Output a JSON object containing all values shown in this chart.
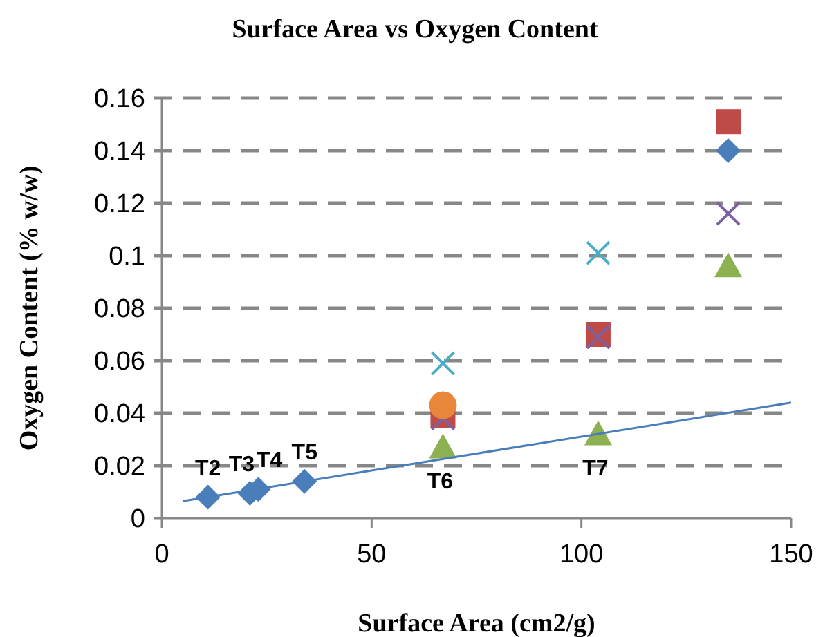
{
  "chart_data": {
    "type": "scatter",
    "title": "Surface Area vs Oxygen Content",
    "xlabel": "Surface Area (cm2/g)",
    "ylabel": "Oxygen Content (% w/w)",
    "xlim": [
      0,
      150
    ],
    "xticks": [
      0,
      50,
      100,
      150
    ],
    "ylim": [
      0,
      0.16
    ],
    "yticks": [
      0,
      0.02,
      0.04,
      0.06,
      0.08,
      0.1,
      0.12,
      0.14,
      0.16
    ],
    "grid": "y",
    "series": [
      {
        "color": "#4a7ebb",
        "marker": "diamond",
        "x": [
          11,
          21,
          23,
          34,
          135
        ],
        "values": [
          0.008,
          0.0095,
          0.011,
          0.014,
          0.14
        ]
      },
      {
        "color": "#be4b48",
        "marker": "square",
        "x": [
          67,
          104,
          135
        ],
        "values": [
          0.039,
          0.07,
          0.151
        ]
      },
      {
        "color": "#7d60a0",
        "marker": "cross",
        "x": [
          67,
          104,
          135
        ],
        "values": [
          0.038,
          0.069,
          0.116
        ]
      },
      {
        "color": "#4bacc6",
        "marker": "cross",
        "x": [
          67,
          104
        ],
        "values": [
          0.059,
          0.101
        ]
      },
      {
        "color": "#e8873a",
        "marker": "circle",
        "x": [
          67
        ],
        "values": [
          0.043
        ]
      },
      {
        "color": "#8db050",
        "marker": "triangle",
        "x": [
          67,
          104,
          135
        ],
        "values": [
          0.027,
          0.032,
          0.096
        ]
      },
      {
        "type": "line",
        "color": "#4a7ebb",
        "marker": "none",
        "x": [
          5,
          150
        ],
        "values": [
          0.0065,
          0.044
        ]
      }
    ],
    "annotations": [
      {
        "text": "T2",
        "x": 11,
        "y": 0.008
      },
      {
        "text": "T3",
        "x": 21,
        "y": 0.0095
      },
      {
        "text": "T4",
        "x": 23,
        "y": 0.011
      },
      {
        "text": "T5",
        "x": 34,
        "y": 0.014
      },
      {
        "text": "T6",
        "x": 67,
        "y": 0.027
      },
      {
        "text": "T7",
        "x": 104,
        "y": 0.032
      }
    ]
  }
}
